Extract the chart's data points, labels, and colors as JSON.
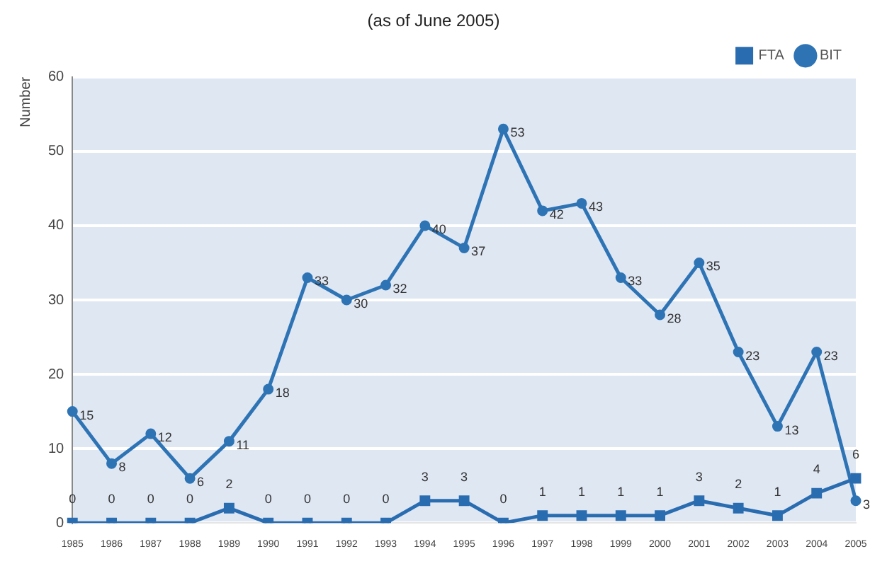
{
  "chart_data": {
    "type": "line",
    "title": "(as of June 2005)",
    "ylabel": "Number",
    "categories": [
      "1985",
      "1986",
      "1987",
      "1988",
      "1989",
      "1990",
      "1991",
      "1992",
      "1993",
      "1994",
      "1995",
      "1996",
      "1997",
      "1998",
      "1999",
      "2000",
      "2001",
      "2002",
      "2003",
      "2004",
      "2005"
    ],
    "series": [
      {
        "name": "FTA",
        "color": "#2a6cb0",
        "marker": "square",
        "values": [
          0,
          0,
          0,
          0,
          2,
          0,
          0,
          0,
          0,
          3,
          3,
          0,
          1,
          1,
          1,
          1,
          3,
          2,
          1,
          4,
          6
        ]
      },
      {
        "name": "BIT",
        "color": "#2e74b5",
        "marker": "circle",
        "values": [
          15,
          8,
          12,
          6,
          11,
          18,
          33,
          30,
          32,
          40,
          37,
          53,
          42,
          43,
          33,
          28,
          35,
          23,
          13,
          23,
          3
        ]
      }
    ],
    "ylim": [
      0,
      60
    ],
    "yticks": [
      0,
      10,
      20,
      30,
      40,
      50,
      60
    ],
    "grid": "y",
    "legend": "top right",
    "data_labels": true
  }
}
